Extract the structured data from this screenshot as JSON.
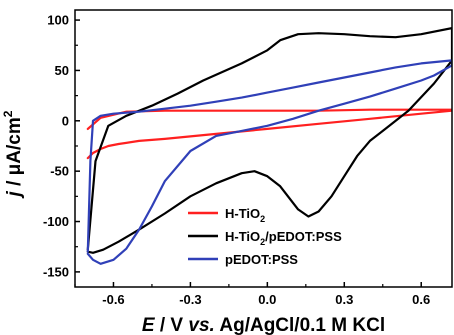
{
  "chart_data": {
    "type": "line",
    "title": "",
    "xlabel": "E / V vs. Ag/AgCl/0.1 M KCl",
    "xlabel_parts": [
      "E",
      " / V ",
      "vs.",
      " Ag/AgCl/0.1 M KCl"
    ],
    "ylabel": "j / μA/cm²",
    "ylabel_parts": [
      "j",
      " / ",
      "μ",
      "A/cm",
      "2"
    ],
    "xlim": [
      -0.75,
      0.72
    ],
    "ylim": [
      -165,
      110
    ],
    "xticks": [
      -0.6,
      -0.3,
      0.0,
      0.3,
      0.6
    ],
    "xtick_labels": [
      "-0.6",
      "-0.3",
      "0.0",
      "0.3",
      "0.6"
    ],
    "yticks": [
      -150,
      -100,
      -50,
      0,
      50,
      100
    ],
    "ytick_labels": [
      "-150",
      "-100",
      "-50",
      "0",
      "50",
      "100"
    ],
    "grid": false,
    "legend_position": "bottom-right",
    "series": [
      {
        "name": "H-TiO2",
        "legend_parts": [
          "H-TiO",
          "2",
          ""
        ],
        "color": "#ff2020",
        "x": [
          -0.7,
          -0.68,
          -0.65,
          -0.62,
          -0.58,
          -0.5,
          -0.4,
          -0.2,
          0.0,
          0.2,
          0.4,
          0.6,
          0.72,
          0.72,
          0.6,
          0.4,
          0.2,
          0.0,
          -0.2,
          -0.4,
          -0.55,
          -0.65,
          -0.7
        ],
        "y": [
          -37,
          -32,
          -28,
          -25,
          -23,
          -20,
          -18,
          -13,
          -8,
          -3,
          2,
          7,
          10,
          11,
          11,
          11,
          10,
          10,
          10,
          10,
          9,
          3,
          -8
        ]
      },
      {
        "name": "H-TiO2/pEDOT:PSS",
        "legend_parts": [
          "H-TiO",
          "2",
          "/pEDOT:PSS"
        ],
        "color": "#000000",
        "x": [
          -0.7,
          -0.67,
          -0.62,
          -0.55,
          -0.45,
          -0.35,
          -0.25,
          -0.1,
          0.0,
          0.05,
          0.12,
          0.2,
          0.3,
          0.4,
          0.5,
          0.6,
          0.72,
          0.72,
          0.65,
          0.55,
          0.45,
          0.4,
          0.35,
          0.3,
          0.25,
          0.2,
          0.16,
          0.12,
          0.05,
          0.0,
          -0.05,
          -0.1,
          -0.2,
          -0.3,
          -0.4,
          -0.5,
          -0.58,
          -0.64,
          -0.68,
          -0.7
        ],
        "y": [
          -128,
          -40,
          -5,
          5,
          15,
          27,
          40,
          57,
          70,
          80,
          86,
          87,
          86,
          84,
          83,
          86,
          92,
          60,
          37,
          10,
          -10,
          -20,
          -35,
          -55,
          -75,
          -90,
          -95,
          -88,
          -65,
          -55,
          -50,
          -52,
          -62,
          -75,
          -92,
          -108,
          -120,
          -128,
          -131,
          -130
        ]
      },
      {
        "name": "pEDOT:PSS",
        "legend_parts": [
          "pEDOT:PSS",
          "",
          ""
        ],
        "color": "#3040b8",
        "x": [
          -0.7,
          -0.69,
          -0.68,
          -0.65,
          -0.6,
          -0.55,
          -0.5,
          -0.4,
          -0.3,
          -0.2,
          -0.1,
          0.0,
          0.1,
          0.2,
          0.3,
          0.4,
          0.5,
          0.6,
          0.72,
          0.72,
          0.65,
          0.6,
          0.5,
          0.4,
          0.3,
          0.2,
          0.1,
          0.0,
          -0.1,
          -0.2,
          -0.3,
          -0.4,
          -0.45,
          -0.5,
          -0.55,
          -0.6,
          -0.65,
          -0.68,
          -0.7
        ],
        "y": [
          -130,
          -40,
          0,
          5,
          7,
          8,
          9,
          12,
          15,
          19,
          23,
          28,
          33,
          38,
          43,
          48,
          53,
          57,
          60,
          55,
          45,
          40,
          32,
          24,
          17,
          10,
          2,
          -5,
          -10,
          -15,
          -30,
          -60,
          -85,
          -108,
          -127,
          -138,
          -142,
          -138,
          -132
        ]
      }
    ]
  }
}
